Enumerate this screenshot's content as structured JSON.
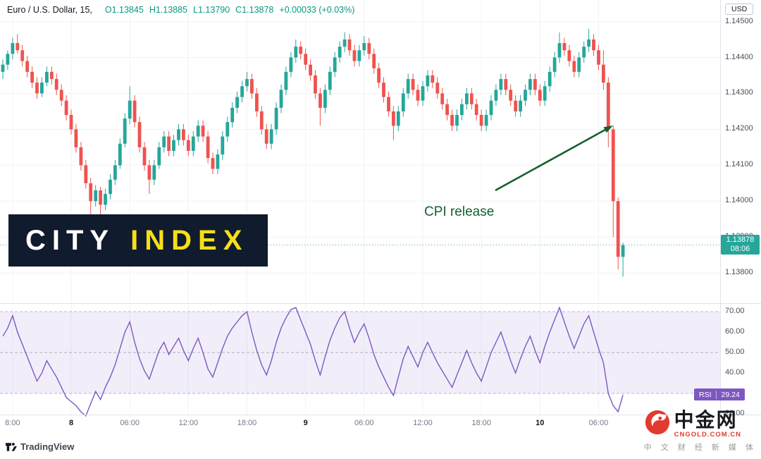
{
  "header": {
    "symbol": "Euro / U.S. Dollar, 15,",
    "ohlc": [
      {
        "k": "O",
        "v": "1.13845"
      },
      {
        "k": "H",
        "v": "1.13885"
      },
      {
        "k": "L",
        "v": "1.13790"
      },
      {
        "k": "C",
        "v": "1.13878"
      }
    ],
    "change": "+0.00033 (+0.03%)"
  },
  "axis": {
    "currency": "USD"
  },
  "price_badge": {
    "price": "1.13878",
    "countdown": "08:06"
  },
  "rsi_badge": {
    "label": "RSI",
    "value": "29.24"
  },
  "watermark": {
    "city": "CITY",
    "index": "INDEX"
  },
  "annotation": {
    "text": "CPI release"
  },
  "footer": {
    "tradingview": "TradingView"
  },
  "cngold": {
    "name": "中金网",
    "domain": "CNGOLD.COM.CN",
    "tagline": "中 文 财 经 新 媒 体"
  },
  "colors": {
    "up": "#26a69a",
    "down": "#ef5350",
    "rsi_line": "#7e57c2",
    "rsi_band": "rgba(126,87,194,0.10)",
    "level": "rgba(126,87,194,0.45)",
    "level50": "#aaadbb",
    "grid": "#f0f2f8",
    "annotation_green": "#14602e",
    "watermark_bg": "#101b2d",
    "watermark_yellow": "#f7df17",
    "cngold_red": "#e23a2e"
  },
  "chart_data": [
    {
      "type": "candlestick",
      "title": "Euro / U.S. Dollar 15-minute",
      "price_scale": 100000,
      "ylim": [
        1.1372,
        1.1456
      ],
      "last_price": 1.13878,
      "y_ticks": [
        {
          "v": 1.145,
          "label": "1.14500"
        },
        {
          "v": 1.144,
          "label": "1.14400"
        },
        {
          "v": 1.143,
          "label": "1.14300"
        },
        {
          "v": 1.142,
          "label": "1.14200"
        },
        {
          "v": 1.141,
          "label": "1.14100"
        },
        {
          "v": 1.14,
          "label": "1.14000"
        },
        {
          "v": 1.139,
          "label": "1.13900"
        },
        {
          "v": 1.138,
          "label": "1.13800"
        }
      ],
      "x_ticks": [
        {
          "i": 2,
          "label": "8:00",
          "major": false
        },
        {
          "i": 14,
          "label": "8",
          "major": true
        },
        {
          "i": 26,
          "label": "06:00",
          "major": false
        },
        {
          "i": 38,
          "label": "12:00",
          "major": false
        },
        {
          "i": 50,
          "label": "18:00",
          "major": false
        },
        {
          "i": 62,
          "label": "9",
          "major": true
        },
        {
          "i": 74,
          "label": "06:00",
          "major": false
        },
        {
          "i": 86,
          "label": "12:00",
          "major": false
        },
        {
          "i": 98,
          "label": "18:00",
          "major": false
        },
        {
          "i": 110,
          "label": "10",
          "major": true
        },
        {
          "i": 122,
          "label": "06:00",
          "major": false
        }
      ],
      "ohlc": [
        [
          114360,
          114395,
          114340,
          114380
        ],
        [
          114380,
          114420,
          114365,
          114410
        ],
        [
          114410,
          114455,
          114395,
          114440
        ],
        [
          114440,
          114465,
          114410,
          114420
        ],
        [
          114420,
          114435,
          114375,
          114390
        ],
        [
          114390,
          114405,
          114345,
          114360
        ],
        [
          114360,
          114375,
          114315,
          114330
        ],
        [
          114330,
          114345,
          114285,
          114300
        ],
        [
          114300,
          114345,
          114290,
          114330
        ],
        [
          114330,
          114375,
          114320,
          114360
        ],
        [
          114360,
          114375,
          114325,
          114340
        ],
        [
          114340,
          114355,
          114295,
          114310
        ],
        [
          114310,
          114325,
          114265,
          114280
        ],
        [
          114280,
          114295,
          114225,
          114240
        ],
        [
          114240,
          114255,
          114185,
          114200
        ],
        [
          114200,
          114215,
          114135,
          114150
        ],
        [
          114150,
          114165,
          114085,
          114100
        ],
        [
          114100,
          114115,
          114035,
          114050
        ],
        [
          114050,
          114065,
          113960,
          114000
        ],
        [
          114000,
          114045,
          113985,
          114030
        ],
        [
          114030,
          114040,
          113950,
          113990
        ],
        [
          113990,
          114035,
          113975,
          114020
        ],
        [
          114020,
          114075,
          114005,
          114060
        ],
        [
          114060,
          114115,
          114045,
          114100
        ],
        [
          114100,
          114175,
          114090,
          114160
        ],
        [
          114160,
          114245,
          114150,
          114230
        ],
        [
          114230,
          114320,
          114215,
          114280
        ],
        [
          114280,
          114295,
          114205,
          114220
        ],
        [
          114220,
          114235,
          114135,
          114150
        ],
        [
          114150,
          114165,
          114085,
          114100
        ],
        [
          114100,
          114115,
          114020,
          114060
        ],
        [
          114060,
          114115,
          114045,
          114100
        ],
        [
          114100,
          114165,
          114090,
          114150
        ],
        [
          114150,
          114195,
          114135,
          114180
        ],
        [
          114180,
          114195,
          114125,
          114140
        ],
        [
          114140,
          114185,
          114125,
          114170
        ],
        [
          114170,
          114215,
          114155,
          114200
        ],
        [
          114200,
          114215,
          114155,
          114170
        ],
        [
          114170,
          114185,
          114125,
          114140
        ],
        [
          114140,
          114195,
          114125,
          114180
        ],
        [
          114180,
          114225,
          114165,
          114210
        ],
        [
          114210,
          114225,
          114165,
          114180
        ],
        [
          114180,
          114195,
          114105,
          114120
        ],
        [
          114120,
          114135,
          114075,
          114090
        ],
        [
          114090,
          114145,
          114075,
          114130
        ],
        [
          114130,
          114195,
          114115,
          114180
        ],
        [
          114180,
          114235,
          114165,
          114220
        ],
        [
          114220,
          114275,
          114205,
          114260
        ],
        [
          114260,
          114305,
          114245,
          114290
        ],
        [
          114290,
          114335,
          114275,
          114320
        ],
        [
          114320,
          114360,
          114305,
          114340
        ],
        [
          114340,
          114355,
          114285,
          114300
        ],
        [
          114300,
          114315,
          114235,
          114250
        ],
        [
          114250,
          114265,
          114185,
          114200
        ],
        [
          114200,
          114215,
          114145,
          114160
        ],
        [
          114160,
          114215,
          114145,
          114200
        ],
        [
          114200,
          114275,
          114185,
          114260
        ],
        [
          114260,
          114325,
          114245,
          114310
        ],
        [
          114310,
          114375,
          114295,
          114360
        ],
        [
          114360,
          114415,
          114345,
          114400
        ],
        [
          114400,
          114450,
          114385,
          114430
        ],
        [
          114430,
          114445,
          114395,
          114410
        ],
        [
          114410,
          114425,
          114365,
          114380
        ],
        [
          114380,
          114395,
          114335,
          114350
        ],
        [
          114350,
          114365,
          114285,
          114300
        ],
        [
          114300,
          114315,
          114210,
          114260
        ],
        [
          114260,
          114325,
          114245,
          114310
        ],
        [
          114310,
          114375,
          114295,
          114360
        ],
        [
          114360,
          114415,
          114345,
          114400
        ],
        [
          114400,
          114445,
          114385,
          114430
        ],
        [
          114430,
          114470,
          114415,
          114450
        ],
        [
          114450,
          114465,
          114405,
          114420
        ],
        [
          114420,
          114435,
          114375,
          114390
        ],
        [
          114390,
          114435,
          114375,
          114420
        ],
        [
          114420,
          114460,
          114405,
          114440
        ],
        [
          114440,
          114455,
          114395,
          114410
        ],
        [
          114410,
          114425,
          114355,
          114370
        ],
        [
          114370,
          114385,
          114315,
          114330
        ],
        [
          114330,
          114345,
          114275,
          114290
        ],
        [
          114290,
          114305,
          114235,
          114250
        ],
        [
          114250,
          114265,
          114170,
          114210
        ],
        [
          114210,
          114265,
          114195,
          114250
        ],
        [
          114250,
          114315,
          114235,
          114300
        ],
        [
          114300,
          114355,
          114285,
          114340
        ],
        [
          114340,
          114355,
          114295,
          114310
        ],
        [
          114310,
          114325,
          114265,
          114280
        ],
        [
          114280,
          114335,
          114265,
          114320
        ],
        [
          114320,
          114365,
          114305,
          114350
        ],
        [
          114350,
          114365,
          114315,
          114330
        ],
        [
          114330,
          114345,
          114285,
          114300
        ],
        [
          114300,
          114315,
          114255,
          114270
        ],
        [
          114270,
          114285,
          114225,
          114240
        ],
        [
          114240,
          114255,
          114195,
          114210
        ],
        [
          114210,
          114255,
          114195,
          114240
        ],
        [
          114240,
          114285,
          114225,
          114270
        ],
        [
          114270,
          114315,
          114255,
          114300
        ],
        [
          114300,
          114315,
          114255,
          114270
        ],
        [
          114270,
          114285,
          114225,
          114240
        ],
        [
          114240,
          114255,
          114195,
          114210
        ],
        [
          114210,
          114255,
          114195,
          114240
        ],
        [
          114240,
          114295,
          114225,
          114280
        ],
        [
          114280,
          114325,
          114265,
          114310
        ],
        [
          114310,
          114355,
          114295,
          114340
        ],
        [
          114340,
          114355,
          114295,
          114310
        ],
        [
          114310,
          114325,
          114265,
          114280
        ],
        [
          114280,
          114295,
          114235,
          114250
        ],
        [
          114250,
          114295,
          114235,
          114280
        ],
        [
          114280,
          114325,
          114265,
          114310
        ],
        [
          114310,
          114355,
          114295,
          114340
        ],
        [
          114340,
          114355,
          114295,
          114310
        ],
        [
          114310,
          114325,
          114265,
          114280
        ],
        [
          114280,
          114335,
          114265,
          114320
        ],
        [
          114320,
          114375,
          114305,
          114360
        ],
        [
          114360,
          114415,
          114345,
          114400
        ],
        [
          114400,
          114470,
          114385,
          114440
        ],
        [
          114440,
          114455,
          114405,
          114420
        ],
        [
          114420,
          114435,
          114375,
          114390
        ],
        [
          114390,
          114405,
          114345,
          114360
        ],
        [
          114360,
          114415,
          114345,
          114400
        ],
        [
          114400,
          114445,
          114385,
          114430
        ],
        [
          114430,
          114480,
          114415,
          114450
        ],
        [
          114450,
          114465,
          114405,
          114420
        ],
        [
          114420,
          114435,
          114365,
          114380
        ],
        [
          114380,
          114420,
          114310,
          114330
        ],
        [
          114330,
          114345,
          114150,
          114200
        ],
        [
          114200,
          114210,
          113900,
          114000
        ],
        [
          114000,
          114010,
          113810,
          113845
        ],
        [
          113845,
          113885,
          113790,
          113878
        ]
      ]
    },
    {
      "type": "line",
      "name": "RSI",
      "ylim": [
        20,
        73.45
      ],
      "levels": [
        70,
        50,
        30
      ],
      "band": [
        30,
        70
      ],
      "last": 29.24,
      "y_ticks": [
        {
          "v": 70,
          "label": "70.00"
        },
        {
          "v": 60,
          "label": "60.00"
        },
        {
          "v": 50,
          "label": "50.00"
        },
        {
          "v": 40,
          "label": "40.00"
        },
        {
          "v": 20,
          "label": "20.00"
        }
      ],
      "values": [
        58,
        62,
        68,
        60,
        54,
        48,
        42,
        36,
        40,
        46,
        42,
        38,
        33,
        28,
        26,
        24,
        21,
        19,
        25,
        31,
        27,
        33,
        38,
        44,
        52,
        60,
        65,
        55,
        47,
        41,
        37,
        44,
        51,
        55,
        49,
        53,
        57,
        51,
        46,
        52,
        57,
        50,
        42,
        38,
        45,
        52,
        58,
        62,
        65,
        68,
        70,
        60,
        51,
        44,
        39,
        46,
        55,
        62,
        67,
        71,
        72,
        66,
        60,
        54,
        46,
        39,
        48,
        56,
        62,
        67,
        70,
        62,
        55,
        60,
        64,
        57,
        49,
        43,
        38,
        33,
        29,
        38,
        47,
        53,
        48,
        43,
        50,
        55,
        50,
        45,
        41,
        37,
        33,
        39,
        45,
        51,
        45,
        40,
        36,
        43,
        50,
        55,
        60,
        53,
        46,
        40,
        47,
        53,
        58,
        51,
        45,
        53,
        60,
        66,
        72,
        65,
        58,
        52,
        58,
        64,
        68,
        60,
        52,
        45,
        30,
        24,
        21,
        29.24
      ]
    }
  ]
}
